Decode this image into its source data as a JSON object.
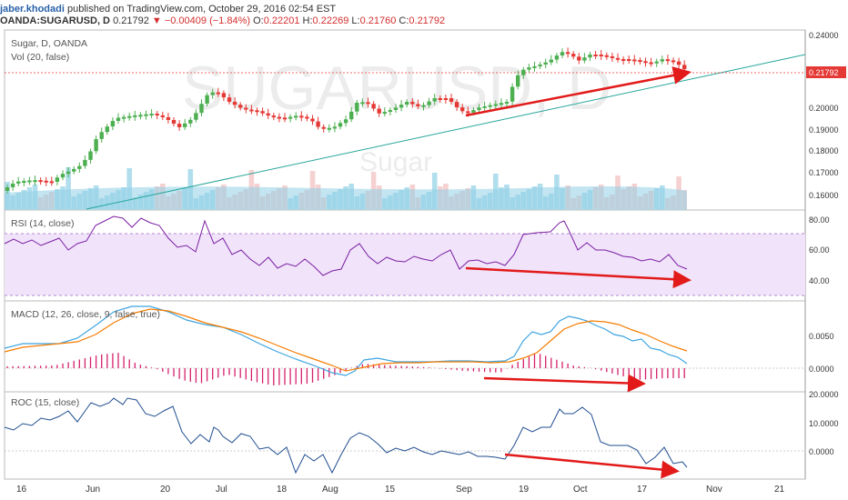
{
  "header": {
    "author": "jaber.khodadi",
    "published": "published on TradingView.com, October 29, 2016 02:54 EST"
  },
  "ohlc": {
    "symbol": "OANDA:SUGARUSD, D",
    "last": "0.21792",
    "change": "▼ −0.00409 (−1.84%)",
    "open_label": "O:",
    "open": "0.22201",
    "high_label": "H:",
    "high": "0.22269",
    "low_label": "L:",
    "low": "0.21760",
    "close_label": "C:",
    "close": "0.21792"
  },
  "main_pane": {
    "title": "Sugar, D, OANDA",
    "volume_label": "Vol (20, false)",
    "watermark": "SUGARUSD, D",
    "watermark_sub": "Sugar",
    "price_badge": "0.21792",
    "axis_ticks": [
      "0.24000",
      "0.20000",
      "0.19000",
      "0.18000",
      "0.17000",
      "0.16000"
    ]
  },
  "rsi_pane": {
    "title": "RSI (14, close)",
    "axis_ticks": [
      "80.00",
      "60.00",
      "40.00"
    ]
  },
  "macd_pane": {
    "title": "MACD (12, 26, close, 9, false, true)",
    "axis_ticks": [
      "0.0050",
      "0.0000"
    ]
  },
  "roc_pane": {
    "title": "ROC (15, close)",
    "axis_ticks": [
      "20.0000",
      "10.0000",
      "0.0000"
    ]
  },
  "time_axis": [
    "16",
    "Jun",
    "20",
    "Jul",
    "18",
    "Aug",
    "15",
    "Sep",
    "19",
    "Oct",
    "17",
    "Nov",
    "21"
  ],
  "colors": {
    "up": "#4caf50",
    "down": "#e53935",
    "arrow": "#e21a1a",
    "trendline": "#26a69a",
    "rsi_line": "#7b1fa2",
    "rsi_fill": "#f0e3fa",
    "macd_line": "#3ea4e0",
    "signal_line": "#f57c00",
    "histogram": "#d4206b",
    "roc_line": "#1f4d8f"
  }
}
